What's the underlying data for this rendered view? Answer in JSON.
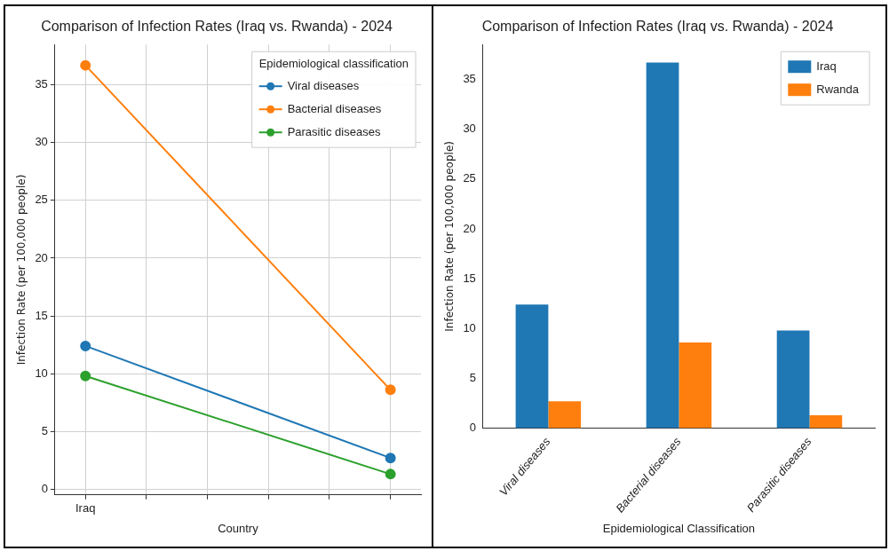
{
  "chart_data": [
    {
      "type": "line",
      "title": "Comparison of Infection Rates (Iraq vs. Rwanda) - 2024",
      "xlabel": "Country",
      "ylabel": "Infection Rate (per 100,000 people)",
      "legend_title": "Epidemiological classification",
      "categories": [
        "Iraq",
        null,
        null,
        null,
        null,
        null
      ],
      "ylim": [
        -0.5,
        38.5
      ],
      "yticks": [
        0,
        5,
        10,
        15,
        20,
        25,
        30,
        35
      ],
      "grid": true,
      "legend": "top right",
      "marker": "circle",
      "series": [
        {
          "name": "Viral diseases",
          "color": "#1f77b4",
          "values": [
            12.4,
            null,
            null,
            null,
            null,
            2.7
          ]
        },
        {
          "name": "Bacterial diseases",
          "color": "#ff7f0e",
          "values": [
            36.7,
            null,
            null,
            null,
            null,
            8.6
          ]
        },
        {
          "name": "Parasitic diseases",
          "color": "#2ca02c",
          "values": [
            9.8,
            null,
            null,
            null,
            null,
            1.3
          ]
        }
      ]
    },
    {
      "type": "bar",
      "title": "Comparison of Infection Rates (Iraq vs. Rwanda) - 2024",
      "xlabel": "Epidemiological Classification",
      "ylabel": "Infection Rate (per 100,000 people)",
      "categories": [
        "Viral diseases",
        "Bacterial diseases",
        "Parasitic diseases"
      ],
      "ylim": [
        0,
        38.5
      ],
      "yticks": [
        0,
        5,
        10,
        15,
        20,
        25,
        30,
        35
      ],
      "legend": "top right",
      "series": [
        {
          "name": "Iraq",
          "color": "#1f77b4",
          "values": [
            12.4,
            36.7,
            9.8
          ]
        },
        {
          "name": "Rwanda",
          "color": "#ff7f0e",
          "values": [
            2.7,
            8.6,
            1.3
          ]
        }
      ]
    }
  ]
}
